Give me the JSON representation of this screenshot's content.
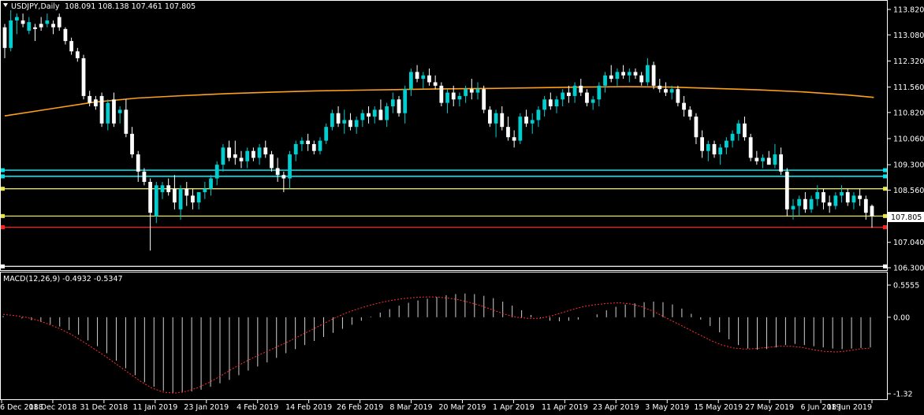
{
  "header": {
    "symbol_label": "USDJPY,Daily",
    "ohlc_label": "108.091 108.138 107.461 107.805"
  },
  "macd_header": {
    "label": "MACD(12,26,9) -0.4932 -0.5347"
  },
  "current_price_label": "107.805",
  "colors": {
    "background": "#000000",
    "bull_candle": "#00ced1",
    "bear_candle": "#ffffff",
    "moving_average": "#ff9f1a",
    "cyan_level": "#00e5ee",
    "yellow_level": "#e6e64a",
    "red_level": "#ff2020",
    "white_level": "#ffffff",
    "macd_signal": "#ff3030",
    "macd_hist": "#d0d0d0",
    "axis_text": "#ffffff"
  },
  "chart_data": [
    {
      "type": "candlestick",
      "title": "USDJPY,Daily",
      "price_axis_ticks": [
        "113.820",
        "113.080",
        "112.320",
        "111.560",
        "110.820",
        "110.060",
        "109.300",
        "108.560",
        "107.805",
        "107.040",
        "106.300"
      ],
      "ylim": [
        106.3,
        113.82
      ],
      "x_tick_labels": [
        "6 Dec 2018",
        "18 Dec 2018",
        "31 Dec 2018",
        "11 Jan 2019",
        "23 Jan 2019",
        "4 Feb 2019",
        "14 Feb 2019",
        "26 Feb 2019",
        "8 Mar 2019",
        "20 Mar 2019",
        "1 Apr 2019",
        "11 Apr 2019",
        "23 Apr 2019",
        "3 May 2019",
        "15 May 2019",
        "27 May 2019",
        "6 Jun 2019",
        "18 Jun 2019"
      ],
      "horizontal_levels": [
        {
          "price": 109.14,
          "color": "cyan"
        },
        {
          "price": 108.96,
          "color": "cyan"
        },
        {
          "price": 108.6,
          "color": "yellow"
        },
        {
          "price": 107.805,
          "color": "yellow"
        },
        {
          "price": 107.48,
          "color": "red"
        },
        {
          "price": 106.34,
          "color": "white"
        }
      ],
      "moving_average": [
        [
          0,
          110.72
        ],
        [
          10,
          110.92
        ],
        [
          20,
          111.12
        ],
        [
          30,
          111.24
        ],
        [
          40,
          111.31
        ],
        [
          50,
          111.37
        ],
        [
          60,
          111.41
        ],
        [
          70,
          111.45
        ],
        [
          80,
          111.47
        ],
        [
          90,
          111.49
        ],
        [
          100,
          111.51
        ],
        [
          110,
          111.52
        ],
        [
          120,
          111.54
        ],
        [
          130,
          111.56
        ],
        [
          140,
          111.57
        ],
        [
          150,
          111.56
        ],
        [
          160,
          111.52
        ],
        [
          170,
          111.48
        ],
        [
          180,
          111.42
        ],
        [
          190,
          111.33
        ],
        [
          196,
          111.26
        ]
      ],
      "candles_ohlc": [
        [
          113.3,
          113.4,
          112.4,
          112.7
        ],
        [
          112.7,
          113.8,
          112.6,
          113.5
        ],
        [
          113.5,
          113.7,
          113.1,
          113.6
        ],
        [
          113.5,
          113.7,
          113.3,
          113.4
        ],
        [
          113.2,
          113.6,
          113.1,
          113.45
        ],
        [
          113.3,
          113.4,
          112.9,
          113.25
        ],
        [
          113.4,
          113.6,
          113.2,
          113.3
        ],
        [
          113.4,
          113.7,
          113.3,
          113.5
        ],
        [
          113.4,
          113.5,
          113.1,
          113.3
        ],
        [
          113.6,
          113.7,
          113.2,
          113.3
        ],
        [
          113.25,
          113.3,
          112.8,
          112.9
        ],
        [
          112.9,
          113.0,
          112.5,
          112.6
        ],
        [
          112.6,
          112.7,
          112.3,
          112.4
        ],
        [
          112.4,
          112.5,
          111.2,
          111.3
        ],
        [
          111.3,
          111.45,
          111.0,
          111.1
        ],
        [
          111.2,
          111.3,
          110.9,
          111.0
        ],
        [
          111.3,
          111.4,
          110.4,
          110.5
        ],
        [
          110.5,
          111.2,
          110.3,
          111.1
        ],
        [
          111.2,
          111.4,
          110.4,
          110.5
        ],
        [
          110.8,
          111.0,
          110.5,
          110.9
        ],
        [
          110.9,
          111.2,
          110.1,
          110.2
        ],
        [
          110.2,
          110.4,
          109.5,
          109.6
        ],
        [
          109.6,
          109.7,
          108.8,
          109.1
        ],
        [
          109.1,
          109.2,
          108.7,
          108.8
        ],
        [
          108.8,
          108.9,
          106.8,
          107.9
        ],
        [
          107.8,
          108.8,
          107.6,
          108.7
        ],
        [
          108.5,
          108.8,
          108.3,
          108.7
        ],
        [
          108.7,
          108.9,
          108.4,
          108.5
        ],
        [
          108.6,
          109.0,
          108.0,
          108.2
        ],
        [
          108.0,
          108.7,
          107.7,
          108.6
        ],
        [
          108.6,
          108.8,
          108.1,
          108.4
        ],
        [
          108.4,
          108.6,
          108.0,
          108.2
        ],
        [
          108.2,
          108.5,
          108.0,
          108.5
        ],
        [
          108.5,
          108.8,
          108.3,
          108.6
        ],
        [
          108.6,
          109.0,
          108.4,
          108.9
        ],
        [
          108.9,
          109.4,
          108.7,
          109.3
        ],
        [
          109.3,
          109.9,
          109.1,
          109.8
        ],
        [
          109.8,
          110.0,
          109.4,
          109.5
        ],
        [
          109.6,
          110.0,
          109.3,
          109.5
        ],
        [
          109.5,
          109.7,
          109.2,
          109.4
        ],
        [
          109.4,
          109.8,
          109.2,
          109.7
        ],
        [
          109.7,
          109.8,
          109.4,
          109.5
        ],
        [
          109.5,
          109.9,
          109.3,
          109.8
        ],
        [
          109.8,
          110.0,
          109.5,
          109.6
        ],
        [
          109.6,
          109.7,
          109.1,
          109.2
        ],
        [
          109.2,
          109.5,
          108.8,
          109.0
        ],
        [
          109.0,
          109.1,
          108.5,
          108.9
        ],
        [
          108.9,
          109.7,
          108.6,
          109.6
        ],
        [
          109.6,
          110.0,
          109.4,
          109.9
        ],
        [
          109.9,
          110.1,
          109.7,
          110.0
        ],
        [
          110.0,
          110.2,
          109.7,
          109.9
        ],
        [
          109.9,
          110.0,
          109.6,
          109.7
        ],
        [
          109.7,
          110.1,
          109.6,
          110.0
        ],
        [
          110.0,
          110.5,
          109.9,
          110.4
        ],
        [
          110.4,
          110.9,
          110.3,
          110.8
        ],
        [
          110.8,
          111.0,
          110.4,
          110.5
        ],
        [
          110.5,
          110.9,
          110.2,
          110.6
        ],
        [
          110.6,
          110.8,
          110.3,
          110.4
        ],
        [
          110.4,
          110.7,
          110.2,
          110.6
        ],
        [
          110.6,
          110.9,
          110.4,
          110.8
        ],
        [
          110.8,
          111.0,
          110.5,
          110.7
        ],
        [
          110.7,
          111.0,
          110.5,
          110.9
        ],
        [
          110.9,
          111.2,
          110.6,
          110.6
        ],
        [
          110.6,
          111.1,
          110.4,
          111.0
        ],
        [
          111.0,
          111.4,
          110.8,
          111.2
        ],
        [
          111.2,
          111.3,
          110.7,
          110.8
        ],
        [
          110.8,
          111.6,
          110.5,
          111.5
        ],
        [
          111.5,
          112.1,
          111.3,
          112.0
        ],
        [
          112.0,
          112.2,
          111.7,
          111.8
        ],
        [
          111.8,
          112.0,
          111.5,
          111.9
        ],
        [
          111.9,
          112.1,
          111.6,
          111.7
        ],
        [
          111.7,
          111.9,
          111.5,
          111.6
        ],
        [
          111.6,
          111.7,
          111.0,
          111.1
        ],
        [
          111.1,
          111.5,
          110.8,
          111.4
        ],
        [
          111.4,
          111.6,
          111.0,
          111.2
        ],
        [
          111.2,
          111.4,
          111.0,
          111.3
        ],
        [
          111.3,
          111.6,
          111.1,
          111.5
        ],
        [
          111.5,
          111.8,
          111.2,
          111.4
        ],
        [
          111.4,
          111.7,
          111.2,
          111.5
        ],
        [
          111.5,
          111.6,
          110.8,
          110.9
        ],
        [
          110.9,
          111.0,
          110.4,
          110.5
        ],
        [
          110.5,
          110.9,
          110.1,
          110.8
        ],
        [
          110.8,
          111.0,
          110.3,
          110.4
        ],
        [
          110.4,
          110.7,
          110.0,
          110.1
        ],
        [
          110.1,
          110.3,
          109.8,
          110.0
        ],
        [
          110.0,
          110.8,
          109.9,
          110.7
        ],
        [
          110.7,
          110.9,
          110.4,
          110.5
        ],
        [
          110.5,
          110.8,
          110.2,
          110.6
        ],
        [
          110.6,
          111.0,
          110.4,
          110.9
        ],
        [
          110.9,
          111.3,
          110.7,
          111.2
        ],
        [
          111.2,
          111.4,
          110.9,
          111.0
        ],
        [
          111.0,
          111.3,
          110.8,
          111.2
        ],
        [
          111.2,
          111.5,
          111.0,
          111.4
        ],
        [
          111.4,
          111.6,
          111.1,
          111.3
        ],
        [
          111.3,
          111.7,
          111.1,
          111.6
        ],
        [
          111.6,
          111.8,
          111.3,
          111.4
        ],
        [
          111.4,
          111.5,
          111.0,
          111.1
        ],
        [
          111.1,
          111.3,
          110.9,
          111.2
        ],
        [
          111.2,
          111.7,
          111.0,
          111.6
        ],
        [
          111.6,
          112.0,
          111.4,
          111.9
        ],
        [
          111.9,
          112.2,
          111.7,
          111.8
        ],
        [
          111.8,
          112.1,
          111.6,
          112.0
        ],
        [
          112.0,
          112.2,
          111.8,
          111.9
        ],
        [
          111.9,
          112.1,
          111.7,
          112.0
        ],
        [
          112.0,
          112.1,
          111.8,
          111.9
        ],
        [
          111.9,
          112.0,
          111.6,
          111.7
        ],
        [
          111.7,
          112.4,
          111.6,
          112.2
        ],
        [
          112.2,
          112.3,
          111.5,
          111.6
        ],
        [
          111.6,
          111.8,
          111.4,
          111.5
        ],
        [
          111.5,
          111.7,
          111.3,
          111.4
        ],
        [
          111.4,
          111.6,
          111.2,
          111.5
        ],
        [
          111.5,
          111.6,
          111.0,
          111.1
        ],
        [
          111.1,
          111.3,
          110.7,
          110.9
        ],
        [
          110.9,
          111.0,
          110.6,
          110.7
        ],
        [
          110.7,
          110.8,
          109.9,
          110.1
        ],
        [
          110.1,
          110.3,
          109.5,
          109.7
        ],
        [
          109.7,
          110.0,
          109.4,
          109.9
        ],
        [
          109.9,
          110.0,
          109.5,
          109.6
        ],
        [
          109.6,
          109.9,
          109.3,
          109.8
        ],
        [
          109.8,
          110.1,
          109.6,
          110.0
        ],
        [
          110.0,
          110.3,
          109.8,
          110.2
        ],
        [
          110.2,
          110.6,
          110.0,
          110.5
        ],
        [
          110.5,
          110.7,
          110.0,
          110.1
        ],
        [
          110.1,
          110.2,
          109.4,
          109.5
        ],
        [
          109.5,
          109.7,
          109.3,
          109.4
        ],
        [
          109.4,
          109.6,
          109.2,
          109.5
        ],
        [
          109.5,
          109.7,
          109.3,
          109.3
        ],
        [
          109.3,
          109.9,
          109.2,
          109.6
        ],
        [
          109.6,
          109.8,
          109.0,
          109.1
        ],
        [
          109.1,
          109.2,
          107.8,
          108.0
        ],
        [
          108.0,
          108.3,
          107.7,
          108.1
        ],
        [
          108.1,
          108.4,
          107.8,
          108.3
        ],
        [
          108.3,
          108.5,
          107.9,
          108.0
        ],
        [
          108.0,
          108.4,
          107.9,
          108.3
        ],
        [
          108.3,
          108.7,
          108.1,
          108.5
        ],
        [
          108.5,
          108.6,
          108.0,
          108.2
        ],
        [
          108.2,
          108.4,
          107.9,
          108.1
        ],
        [
          108.1,
          108.5,
          108.0,
          108.4
        ],
        [
          108.4,
          108.7,
          108.2,
          108.5
        ],
        [
          108.5,
          108.6,
          108.1,
          108.2
        ],
        [
          108.2,
          108.5,
          108.0,
          108.4
        ],
        [
          108.4,
          108.6,
          108.1,
          108.3
        ],
        [
          108.3,
          108.4,
          107.7,
          107.9
        ],
        [
          108.1,
          108.14,
          107.46,
          107.805
        ]
      ]
    },
    {
      "type": "macd",
      "title": "MACD(12,26,9) -0.4932 -0.5347",
      "y_tick_labels": [
        "0.5555",
        "0.00",
        "-1.32"
      ],
      "ylim": [
        -1.32,
        0.5555
      ],
      "histogram": [
        0.02,
        0.0,
        -0.02,
        -0.05,
        -0.08,
        -0.12,
        -0.16,
        -0.22,
        -0.3,
        -0.4,
        -0.5,
        -0.62,
        -0.75,
        -0.88,
        -1.0,
        -1.12,
        -1.2,
        -1.27,
        -1.3,
        -1.3,
        -1.28,
        -1.25,
        -1.2,
        -1.14,
        -1.08,
        -1.0,
        -0.92,
        -0.85,
        -0.78,
        -0.7,
        -0.62,
        -0.55,
        -0.48,
        -0.41,
        -0.34,
        -0.27,
        -0.2,
        -0.13,
        -0.06,
        0.01,
        0.08,
        0.14,
        0.2,
        0.25,
        0.29,
        0.32,
        0.35,
        0.38,
        0.4,
        0.41,
        0.4,
        0.37,
        0.33,
        0.27,
        0.2,
        0.12,
        0.04,
        -0.02,
        -0.06,
        -0.07,
        -0.06,
        -0.04,
        0.0,
        0.05,
        0.12,
        0.18,
        0.22,
        0.24,
        0.26,
        0.27,
        0.26,
        0.22,
        0.15,
        0.06,
        -0.04,
        -0.15,
        -0.26,
        -0.38,
        -0.48,
        -0.54,
        -0.56,
        -0.55,
        -0.52,
        -0.48,
        -0.46,
        -0.48,
        -0.5,
        -0.52,
        -0.54,
        -0.55,
        -0.54,
        -0.53,
        -0.52
      ],
      "signal": [
        0.05,
        0.03,
        0.0,
        -0.05,
        -0.12,
        -0.2,
        -0.3,
        -0.42,
        -0.55,
        -0.68,
        -0.82,
        -0.96,
        -1.1,
        -1.22,
        -1.29,
        -1.31,
        -1.28,
        -1.22,
        -1.13,
        -1.02,
        -0.9,
        -0.79,
        -0.69,
        -0.6,
        -0.51,
        -0.42,
        -0.32,
        -0.22,
        -0.12,
        -0.02,
        0.07,
        0.14,
        0.2,
        0.25,
        0.29,
        0.32,
        0.34,
        0.35,
        0.35,
        0.33,
        0.3,
        0.25,
        0.19,
        0.12,
        0.05,
        0.0,
        -0.02,
        -0.02,
        0.02,
        0.08,
        0.14,
        0.19,
        0.22,
        0.24,
        0.25,
        0.23,
        0.18,
        0.1,
        0.0,
        -0.1,
        -0.2,
        -0.3,
        -0.4,
        -0.48,
        -0.53,
        -0.55,
        -0.54,
        -0.52,
        -0.5,
        -0.5,
        -0.52,
        -0.56,
        -0.59,
        -0.6,
        -0.58,
        -0.55,
        -0.53
      ]
    }
  ]
}
